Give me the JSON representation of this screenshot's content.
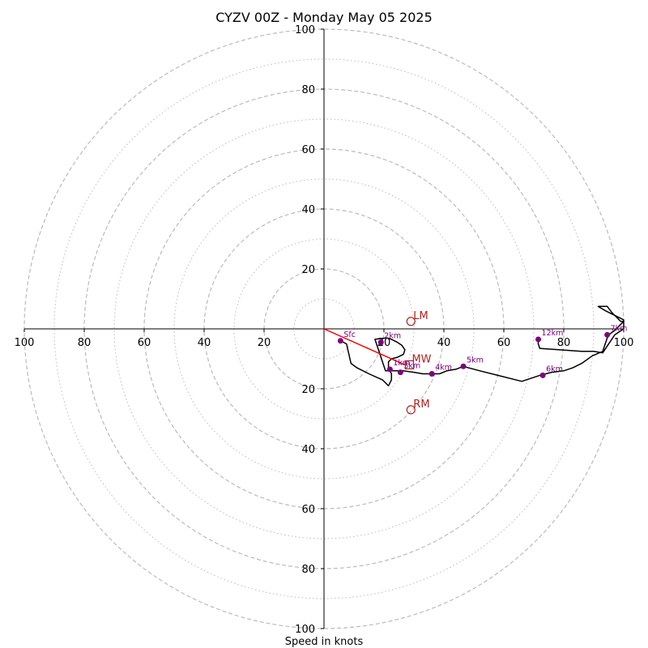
{
  "chart_data": {
    "type": "hodograph",
    "title": "CYZV 00Z - Monday May 05 2025",
    "xlabel": "Speed in knots",
    "range_kt": 100,
    "ring_major_kt": [
      20,
      40,
      60,
      80,
      100
    ],
    "ring_minor_kt": [
      10,
      30,
      50,
      70,
      90
    ],
    "tick_labels": [
      "20",
      "40",
      "60",
      "80",
      "100"
    ],
    "colors": {
      "profile": "#000000",
      "height_marker": "#800080",
      "motion": "#b22222",
      "mean_wind_vector": "#ff0000",
      "grid": "#bbbbbb"
    },
    "profile": [
      [
        5.5,
        -4
      ],
      [
        7.5,
        -5
      ],
      [
        9,
        -11.5
      ],
      [
        11,
        -13
      ],
      [
        15,
        -15
      ],
      [
        19.5,
        -17
      ],
      [
        21.5,
        -19
      ],
      [
        22.5,
        -17
      ],
      [
        22.5,
        -15
      ],
      [
        21.5,
        -13
      ],
      [
        21.5,
        -11
      ],
      [
        22.5,
        -10
      ],
      [
        24.5,
        -9.5
      ],
      [
        26.5,
        -8.5
      ],
      [
        27,
        -7
      ],
      [
        26,
        -5.5
      ],
      [
        24.5,
        -4.5
      ],
      [
        22.5,
        -3.5
      ],
      [
        21,
        -3
      ],
      [
        17,
        -3.5
      ],
      [
        20.5,
        -14
      ],
      [
        24.5,
        -14
      ],
      [
        26.5,
        -14
      ],
      [
        30,
        -14.5
      ],
      [
        33,
        -15
      ],
      [
        36,
        -15
      ],
      [
        38.5,
        -15
      ],
      [
        41,
        -14
      ],
      [
        44,
        -13.5
      ],
      [
        46.5,
        -12.5
      ],
      [
        52,
        -14
      ],
      [
        58,
        -15.5
      ],
      [
        66,
        -17.5
      ],
      [
        72,
        -15.5
      ],
      [
        76,
        -14.5
      ],
      [
        80,
        -14
      ],
      [
        83,
        -13
      ],
      [
        86,
        -11.5
      ],
      [
        89.5,
        -9
      ],
      [
        93,
        -7.5
      ],
      [
        94.5,
        -3
      ],
      [
        95,
        -2
      ],
      [
        97,
        -0.5
      ],
      [
        100,
        2.5
      ],
      [
        99,
        2.5
      ],
      [
        96,
        5.5
      ],
      [
        94.5,
        7.5
      ],
      [
        91.5,
        7.5
      ],
      [
        94,
        6
      ],
      [
        100,
        3
      ],
      [
        100,
        0
      ],
      [
        97,
        -2
      ],
      [
        93,
        -8
      ],
      [
        90,
        -7.5
      ],
      [
        86,
        -7.5
      ],
      [
        72,
        -6.5
      ],
      [
        71.5,
        -5
      ],
      [
        71.5,
        -3.5
      ]
    ],
    "height_markers": [
      {
        "label": "Sfc",
        "u": 5.5,
        "v": -4
      },
      {
        "label": "1km",
        "u": 22,
        "v": -13.5
      },
      {
        "label": "2km",
        "u": 19,
        "v": -4.5
      },
      {
        "label": "3km",
        "u": 25.5,
        "v": -14.5
      },
      {
        "label": "4km",
        "u": 36,
        "v": -15
      },
      {
        "label": "5km",
        "u": 46.5,
        "v": -12.5
      },
      {
        "label": "6km",
        "u": 73,
        "v": -15.5
      },
      {
        "label": "7km",
        "u": 94.5,
        "v": -2
      },
      {
        "label": "12km",
        "u": 71.5,
        "v": -3.5
      }
    ],
    "storm_motion": [
      {
        "label": "LM",
        "u": 29,
        "v": 2.5
      },
      {
        "label": "MW",
        "u": 28.5,
        "v": -12
      },
      {
        "label": "RM",
        "u": 29,
        "v": -27
      }
    ],
    "mean_wind_vector": {
      "u": 27,
      "v": -12
    }
  }
}
